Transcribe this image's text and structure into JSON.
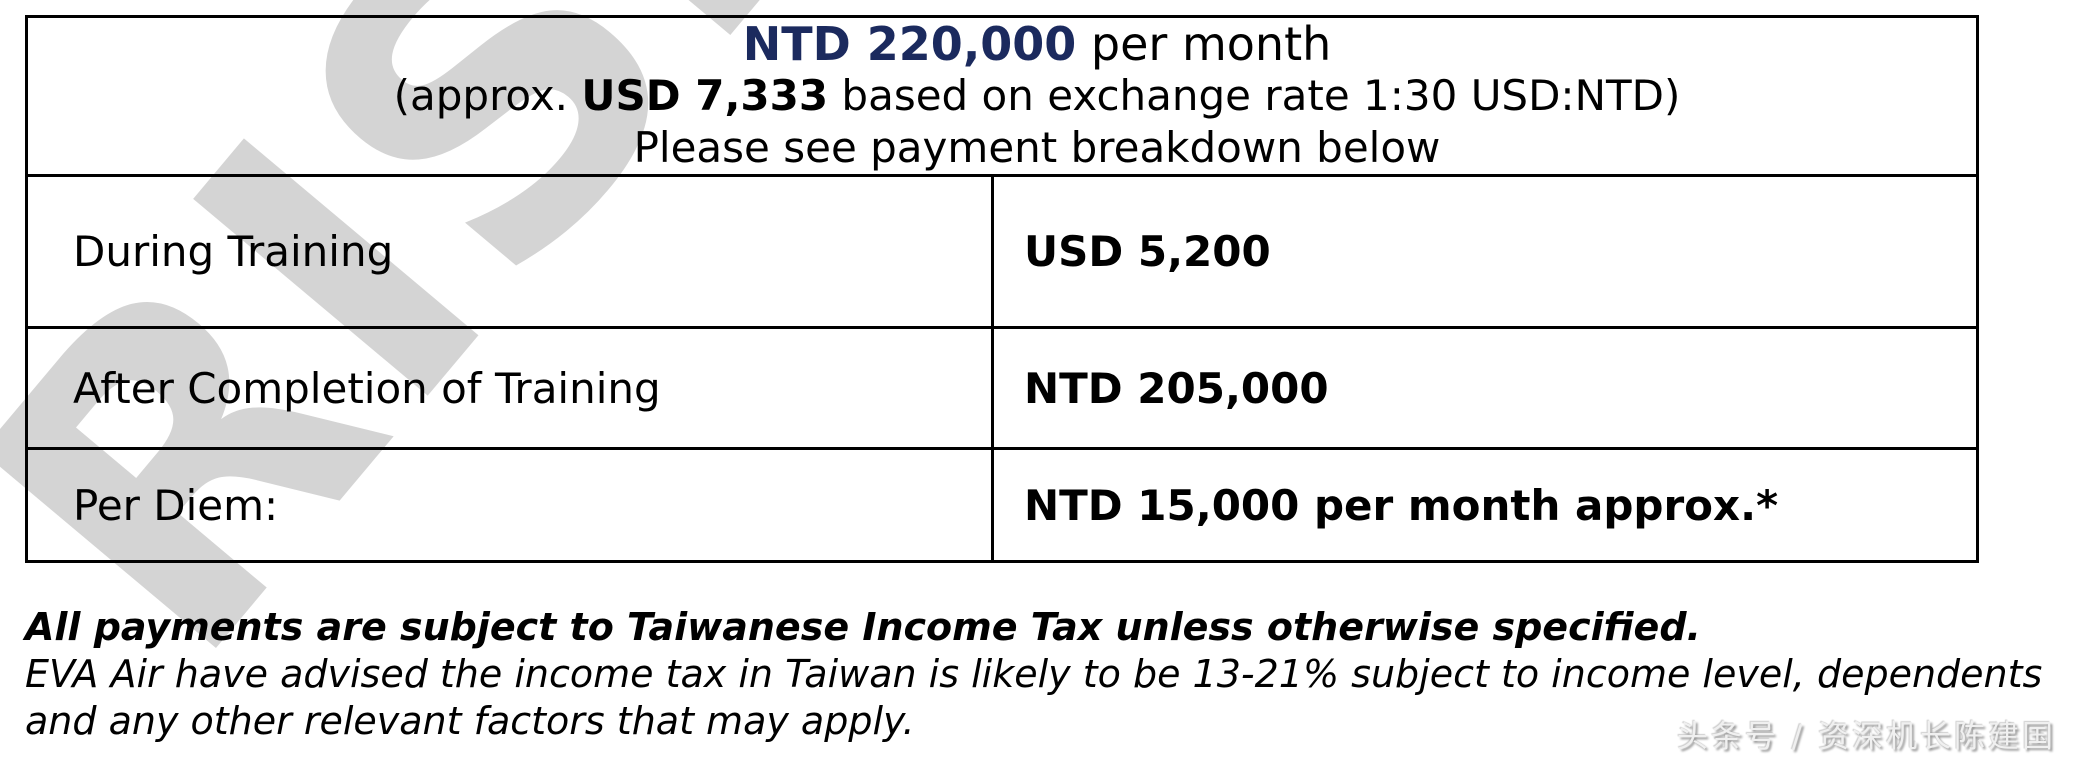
{
  "header": {
    "amount": "NTD 220,000",
    "amount_suffix": " per month",
    "line2_prefix": "(approx. ",
    "line2_bold": "USD 7,333",
    "line2_suffix": " based on exchange rate 1:30 USD:NTD)",
    "line3": "Please see payment breakdown below"
  },
  "table": {
    "rows": [
      {
        "label": "During Training",
        "value": "USD 5,200"
      },
      {
        "label": "After Completion of Training",
        "value": "NTD 205,000"
      },
      {
        "label": "Per Diem:",
        "value": "NTD 15,000 per month approx.*"
      }
    ]
  },
  "notes": {
    "bold_line": "All payments are subject to Taiwanese Income Tax unless otherwise specified.",
    "italic_line1": "EVA Air have advised the income tax in Taiwan is likely to be 13-21% subject to income level, dependents",
    "italic_line2": "and any other relevant factors that may apply."
  },
  "watermarks": {
    "diagonal_text": "RISH",
    "corner_text": "头条号 / 资深机长陈建国"
  },
  "colors": {
    "navy_amount": "#1b2a5e",
    "text_black": "#000000",
    "table_border": "#000000",
    "diagonal_watermark_gray": "#d4d4d4",
    "corner_watermark_gray": "#bdbdbd"
  }
}
